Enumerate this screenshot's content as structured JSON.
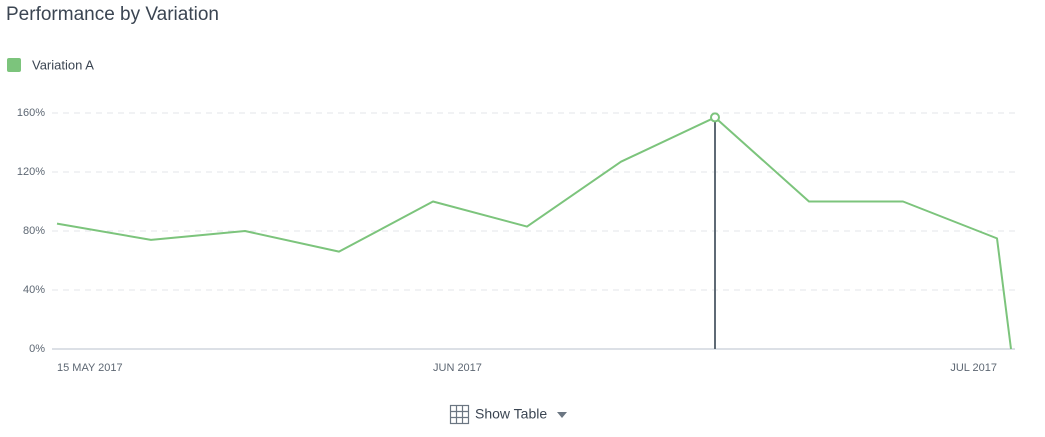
{
  "chart_data": {
    "type": "line",
    "title": "Performance by Variation",
    "categories": [
      "15 MAY 2017",
      null,
      null,
      null,
      "JUN 2017",
      null,
      null,
      null,
      null,
      null,
      "JUL 2017",
      null
    ],
    "series": [
      {
        "name": "Variation A",
        "color": "#7cc47c",
        "values": [
          85,
          74,
          80,
          66,
          100,
          83,
          127,
          157,
          100,
          100,
          75,
          0
        ]
      }
    ],
    "ylim": [
      0,
      160
    ],
    "yticks": [
      {
        "value": 0,
        "label": "0%"
      },
      {
        "value": 40,
        "label": "40%"
      },
      {
        "value": 80,
        "label": "80%"
      },
      {
        "value": 120,
        "label": "120%"
      },
      {
        "value": 160,
        "label": "160%"
      }
    ],
    "grid": true,
    "legend": "top-left"
  },
  "controls": {
    "show_table": "Show Table"
  }
}
